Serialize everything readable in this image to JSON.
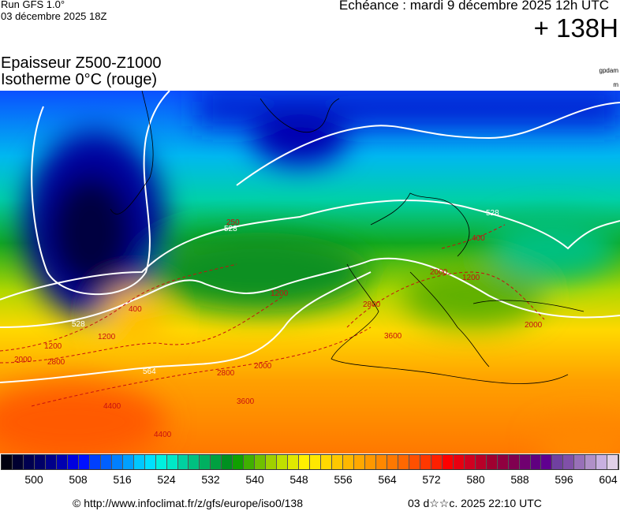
{
  "header": {
    "run_line1": "Run GFS 1.0°",
    "run_line2": "03 décembre 2025 18Z",
    "echeance": "Echéance : mardi 9 décembre 2025 12h UTC",
    "lead_time": "+ 138H"
  },
  "title": {
    "line1": "Epaisseur Z500-Z1000",
    "line2": "Isotherme 0°C (rouge)",
    "unit_thickness": "gpdam",
    "unit_isotherm": "m"
  },
  "map": {
    "white_contour_labels": [
      "528",
      "528",
      "528",
      "564"
    ],
    "red_contour_labels": [
      "1200",
      "2000",
      "2800",
      "1200",
      "400",
      "1200",
      "2800",
      "3600",
      "4400",
      "4400",
      "2000",
      "3600",
      "2800",
      "2000",
      "1200",
      "400",
      "2000",
      "250"
    ]
  },
  "colorbar": {
    "colors": [
      "#000010",
      "#000030",
      "#000050",
      "#000068",
      "#00008a",
      "#0000b0",
      "#0000e0",
      "#0010ff",
      "#0040ff",
      "#0060ff",
      "#0080ff",
      "#00a0ff",
      "#00c8ff",
      "#00e0ff",
      "#00f0e0",
      "#00e8c8",
      "#00d0a0",
      "#00c080",
      "#00b060",
      "#00a040",
      "#009020",
      "#10a000",
      "#40b000",
      "#70c000",
      "#a0d000",
      "#c0e000",
      "#e0e800",
      "#fff000",
      "#ffe800",
      "#ffd800",
      "#ffc800",
      "#ffb800",
      "#ffa800",
      "#ff9800",
      "#ff8800",
      "#ff7800",
      "#ff6800",
      "#ff5000",
      "#ff3800",
      "#ff2000",
      "#ff0000",
      "#e80010",
      "#d00020",
      "#b80028",
      "#a00030",
      "#900040",
      "#800050",
      "#700070",
      "#600080",
      "#600090",
      "#7040a0",
      "#8050a8",
      "#9870b8",
      "#b090c8",
      "#c8b0e0",
      "#e0d0e8"
    ],
    "tick_labels": [
      "500",
      "508",
      "516",
      "524",
      "532",
      "540",
      "548",
      "556",
      "564",
      "572",
      "580",
      "588",
      "596",
      "604"
    ]
  },
  "footer": {
    "source": "© http://www.infoclimat.fr/z/gfs/europe/iso0/138",
    "generated": "03 d☆☆c. 2025 22:10 UTC"
  }
}
